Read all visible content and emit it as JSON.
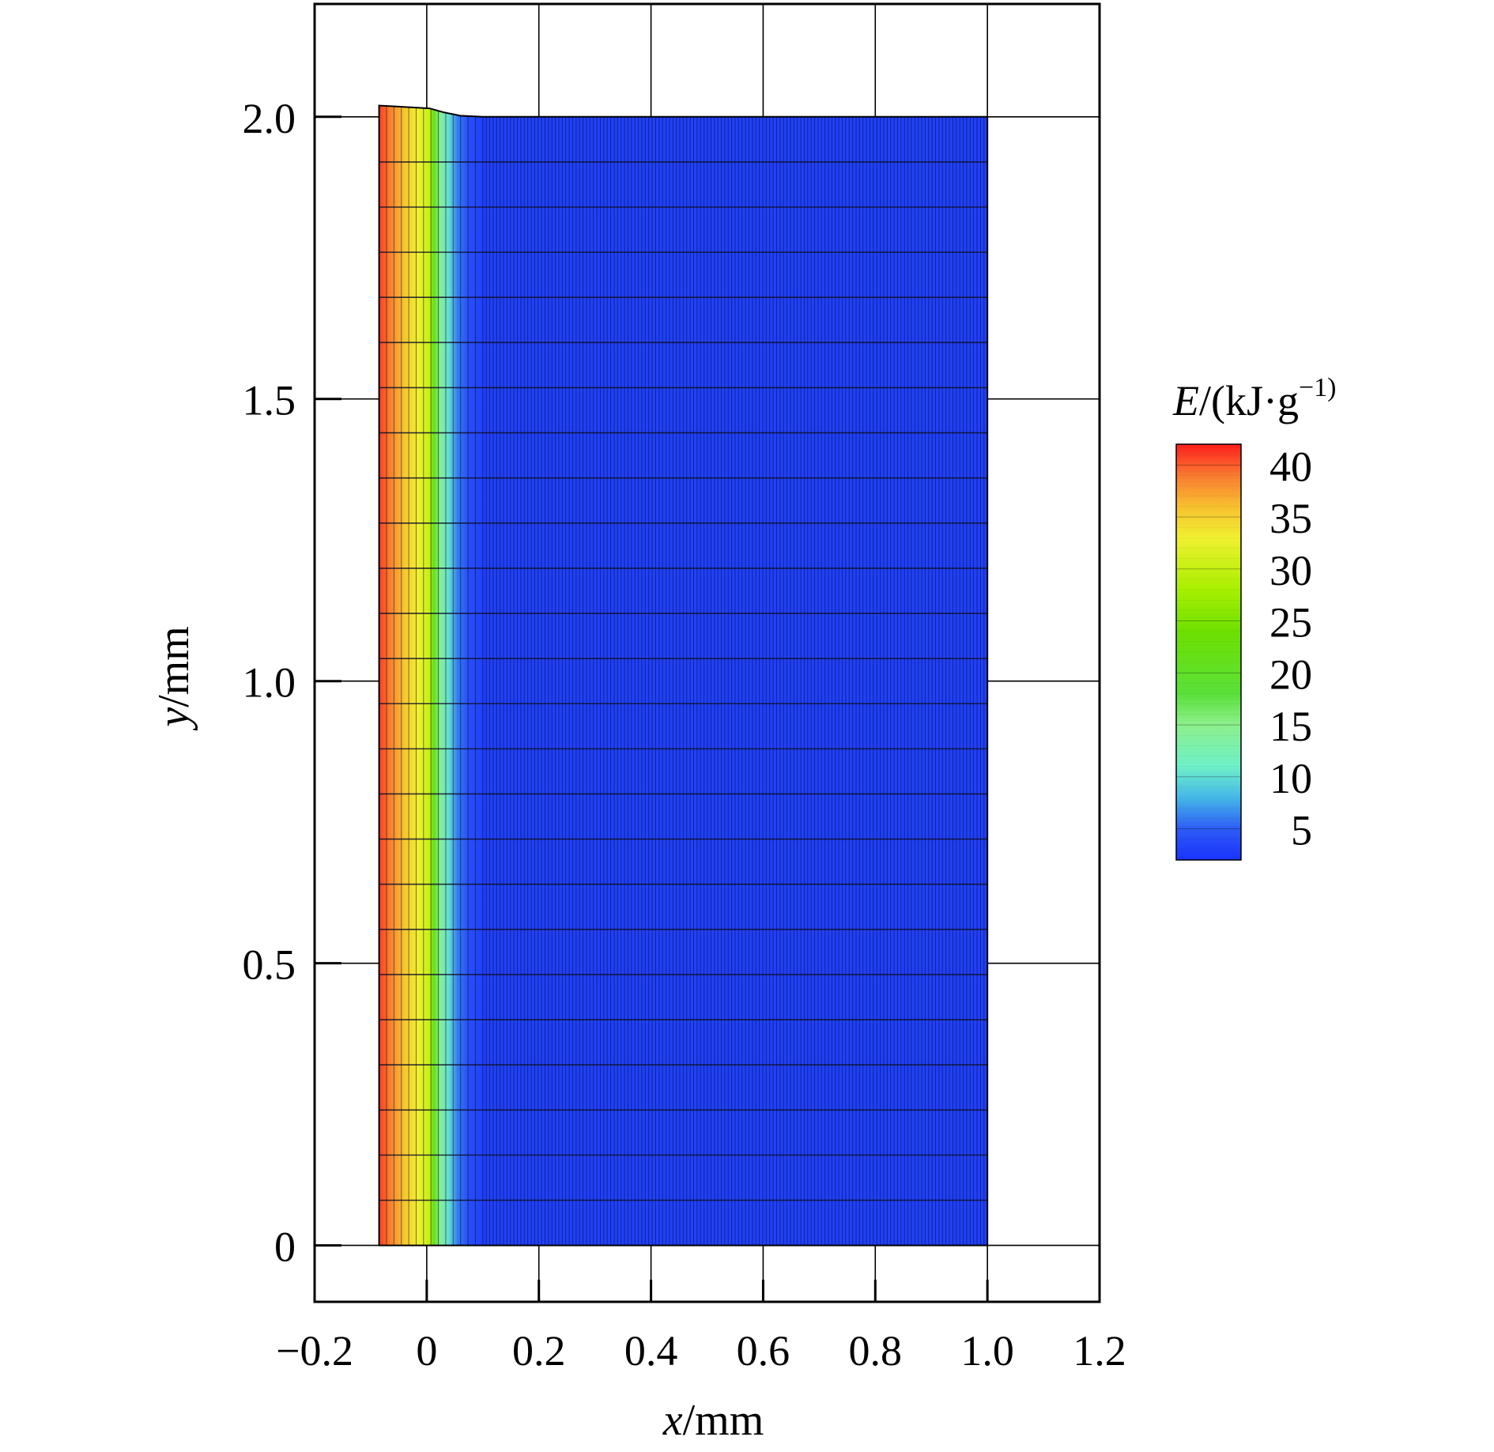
{
  "chart_data": {
    "type": "heatmap",
    "title": "",
    "xlabel": {
      "var": "x",
      "unit": "/mm"
    },
    "ylabel": {
      "var": "y",
      "unit": "/mm"
    },
    "xlim": [
      -0.2,
      1.2
    ],
    "ylim": [
      -0.1,
      2.2
    ],
    "xticks": [
      {
        "value": -0.2,
        "label": "−0.2"
      },
      {
        "value": 0,
        "label": "0"
      },
      {
        "value": 0.2,
        "label": "0.2"
      },
      {
        "value": 0.4,
        "label": "0.4"
      },
      {
        "value": 0.6,
        "label": "0.6"
      },
      {
        "value": 0.8,
        "label": "0.8"
      },
      {
        "value": 1.0,
        "label": "1.0"
      },
      {
        "value": 1.2,
        "label": "1.2"
      }
    ],
    "yticks": [
      {
        "value": 0,
        "label": "0"
      },
      {
        "value": 0.5,
        "label": "0.5"
      },
      {
        "value": 1.0,
        "label": "1.0"
      },
      {
        "value": 1.5,
        "label": "1.5"
      },
      {
        "value": 2.0,
        "label": "2.0"
      }
    ],
    "grid": true,
    "domain": {
      "x": [
        -0.085,
        1.0
      ],
      "y": [
        0,
        2.0
      ]
    },
    "top_edge": [
      {
        "x": -0.085,
        "y": 2.02
      },
      {
        "x": 0.005,
        "y": 2.015
      },
      {
        "x": 0.03,
        "y": 2.008
      },
      {
        "x": 0.06,
        "y": 2.002
      },
      {
        "x": 0.1,
        "y": 2.0
      },
      {
        "x": 1.0,
        "y": 2.0
      }
    ],
    "energy_profile": [
      {
        "x": -0.085,
        "E": 41
      },
      {
        "x": -0.06,
        "E": 38
      },
      {
        "x": -0.035,
        "E": 35
      },
      {
        "x": -0.015,
        "E": 33
      },
      {
        "x": 0.005,
        "E": 30
      },
      {
        "x": 0.012,
        "E": 22
      },
      {
        "x": 0.025,
        "E": 14
      },
      {
        "x": 0.04,
        "E": 10
      },
      {
        "x": 0.055,
        "E": 6
      },
      {
        "x": 0.075,
        "E": 4
      },
      {
        "x": 0.1,
        "E": 3
      },
      {
        "x": 1.0,
        "E": 3
      }
    ],
    "mesh": {
      "rows": 25,
      "cols": 160
    },
    "colorbar": {
      "title": {
        "var": "E",
        "unit": "/(kJ·g",
        "sup": "−1",
        "close": ")"
      },
      "range": [
        2,
        42
      ],
      "ticks": [
        40,
        35,
        30,
        25,
        20,
        15,
        10,
        5
      ],
      "stops": [
        {
          "value": 2,
          "color": "#1a33ff"
        },
        {
          "value": 5,
          "color": "#2d5cf5"
        },
        {
          "value": 8,
          "color": "#45b8e8"
        },
        {
          "value": 11,
          "color": "#6ff0c8"
        },
        {
          "value": 15,
          "color": "#8cf08c"
        },
        {
          "value": 18,
          "color": "#5ae03a"
        },
        {
          "value": 24,
          "color": "#6ee000"
        },
        {
          "value": 28,
          "color": "#a8f000"
        },
        {
          "value": 33,
          "color": "#f0f030"
        },
        {
          "value": 36,
          "color": "#f8c030"
        },
        {
          "value": 39,
          "color": "#f87a30"
        },
        {
          "value": 42,
          "color": "#ff1e1e"
        }
      ]
    }
  }
}
